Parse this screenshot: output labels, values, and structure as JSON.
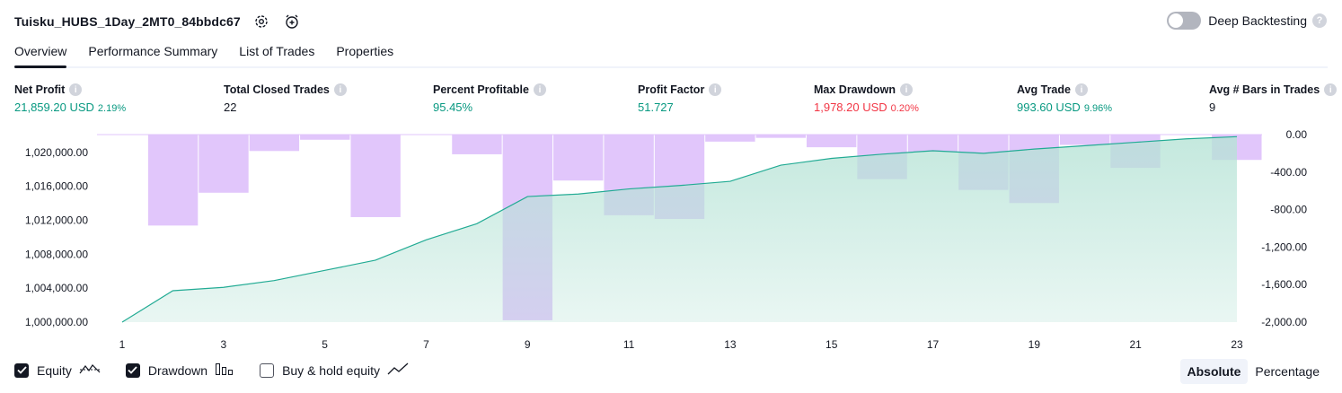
{
  "header": {
    "title": "Tuisku_HUBS_1Day_2MT0_84bbdc67",
    "deep_backtesting_label": "Deep Backtesting",
    "deep_backtesting_enabled": false
  },
  "tabs": [
    {
      "label": "Overview",
      "active": true
    },
    {
      "label": "Performance Summary",
      "active": false
    },
    {
      "label": "List of Trades",
      "active": false
    },
    {
      "label": "Properties",
      "active": false
    }
  ],
  "stats": [
    {
      "label": "Net Profit",
      "value": "21,859.20 USD",
      "pct": "2.19%",
      "color": "#089981"
    },
    {
      "label": "Total Closed Trades",
      "value": "22",
      "pct": "",
      "color": "#131722"
    },
    {
      "label": "Percent Profitable",
      "value": "95.45%",
      "pct": "",
      "color": "#089981"
    },
    {
      "label": "Profit Factor",
      "value": "51.727",
      "pct": "",
      "color": "#089981"
    },
    {
      "label": "Max Drawdown",
      "value": "1,978.20 USD",
      "pct": "0.20%",
      "color": "#f23645"
    },
    {
      "label": "Avg Trade",
      "value": "993.60 USD",
      "pct": "9.96%",
      "color": "#089981"
    },
    {
      "label": "Avg # Bars in Trades",
      "value": "9",
      "pct": "",
      "color": "#131722"
    }
  ],
  "chart_data": {
    "type": "area",
    "x_ticks": [
      "1",
      "3",
      "5",
      "7",
      "9",
      "11",
      "13",
      "15",
      "17",
      "19",
      "21",
      "23"
    ],
    "equity": {
      "x": [
        1,
        2,
        3,
        4,
        5,
        6,
        7,
        8,
        9,
        10,
        11,
        12,
        13,
        14,
        15,
        16,
        17,
        18,
        19,
        20,
        21,
        22,
        23
      ],
      "values": [
        1000000,
        1003700,
        1004100,
        1004900,
        1006100,
        1007300,
        1009700,
        1011600,
        1014800,
        1015100,
        1015700,
        1016100,
        1016600,
        1018500,
        1019300,
        1019800,
        1020200,
        1019900,
        1020400,
        1020800,
        1021200,
        1021600,
        1021860
      ]
    },
    "drawdown": {
      "x": [
        2,
        3,
        4,
        5,
        6,
        7,
        8,
        9,
        10,
        11,
        12,
        13,
        14,
        15,
        16,
        17,
        18,
        19,
        20,
        21,
        22,
        23
      ],
      "values": [
        -970,
        -620,
        -175,
        -55,
        -880,
        0,
        -210,
        -1980,
        -490,
        -860,
        -900,
        -75,
        -35,
        -135,
        -475,
        -185,
        -590,
        -730,
        -110,
        -355,
        0,
        -270
      ]
    },
    "left_axis": {
      "ticks": [
        "1,020,000.00",
        "1,016,000.00",
        "1,012,000.00",
        "1,008,000.00",
        "1,004,000.00",
        "1,000,000.00"
      ],
      "range": [
        1000000,
        1022000
      ]
    },
    "right_axis": {
      "ticks": [
        "0.00",
        "-400.00",
        "-800.00",
        "-1,200.00",
        "-1,600.00",
        "-2,000.00"
      ],
      "range": [
        -2000,
        0
      ]
    },
    "colors": {
      "equity_line": "#22ab94",
      "equity_fill": "#b6e3d6",
      "drawdown_bar": "#e1c6fb"
    }
  },
  "legend": [
    {
      "label": "Equity",
      "checked": true,
      "icon": "equity-icon"
    },
    {
      "label": "Drawdown",
      "checked": true,
      "icon": "drawdown-bars-icon"
    },
    {
      "label": "Buy & hold equity",
      "checked": false,
      "icon": "buy-hold-line-icon"
    }
  ],
  "modes": [
    {
      "label": "Absolute",
      "active": true
    },
    {
      "label": "Percentage",
      "active": false
    }
  ]
}
